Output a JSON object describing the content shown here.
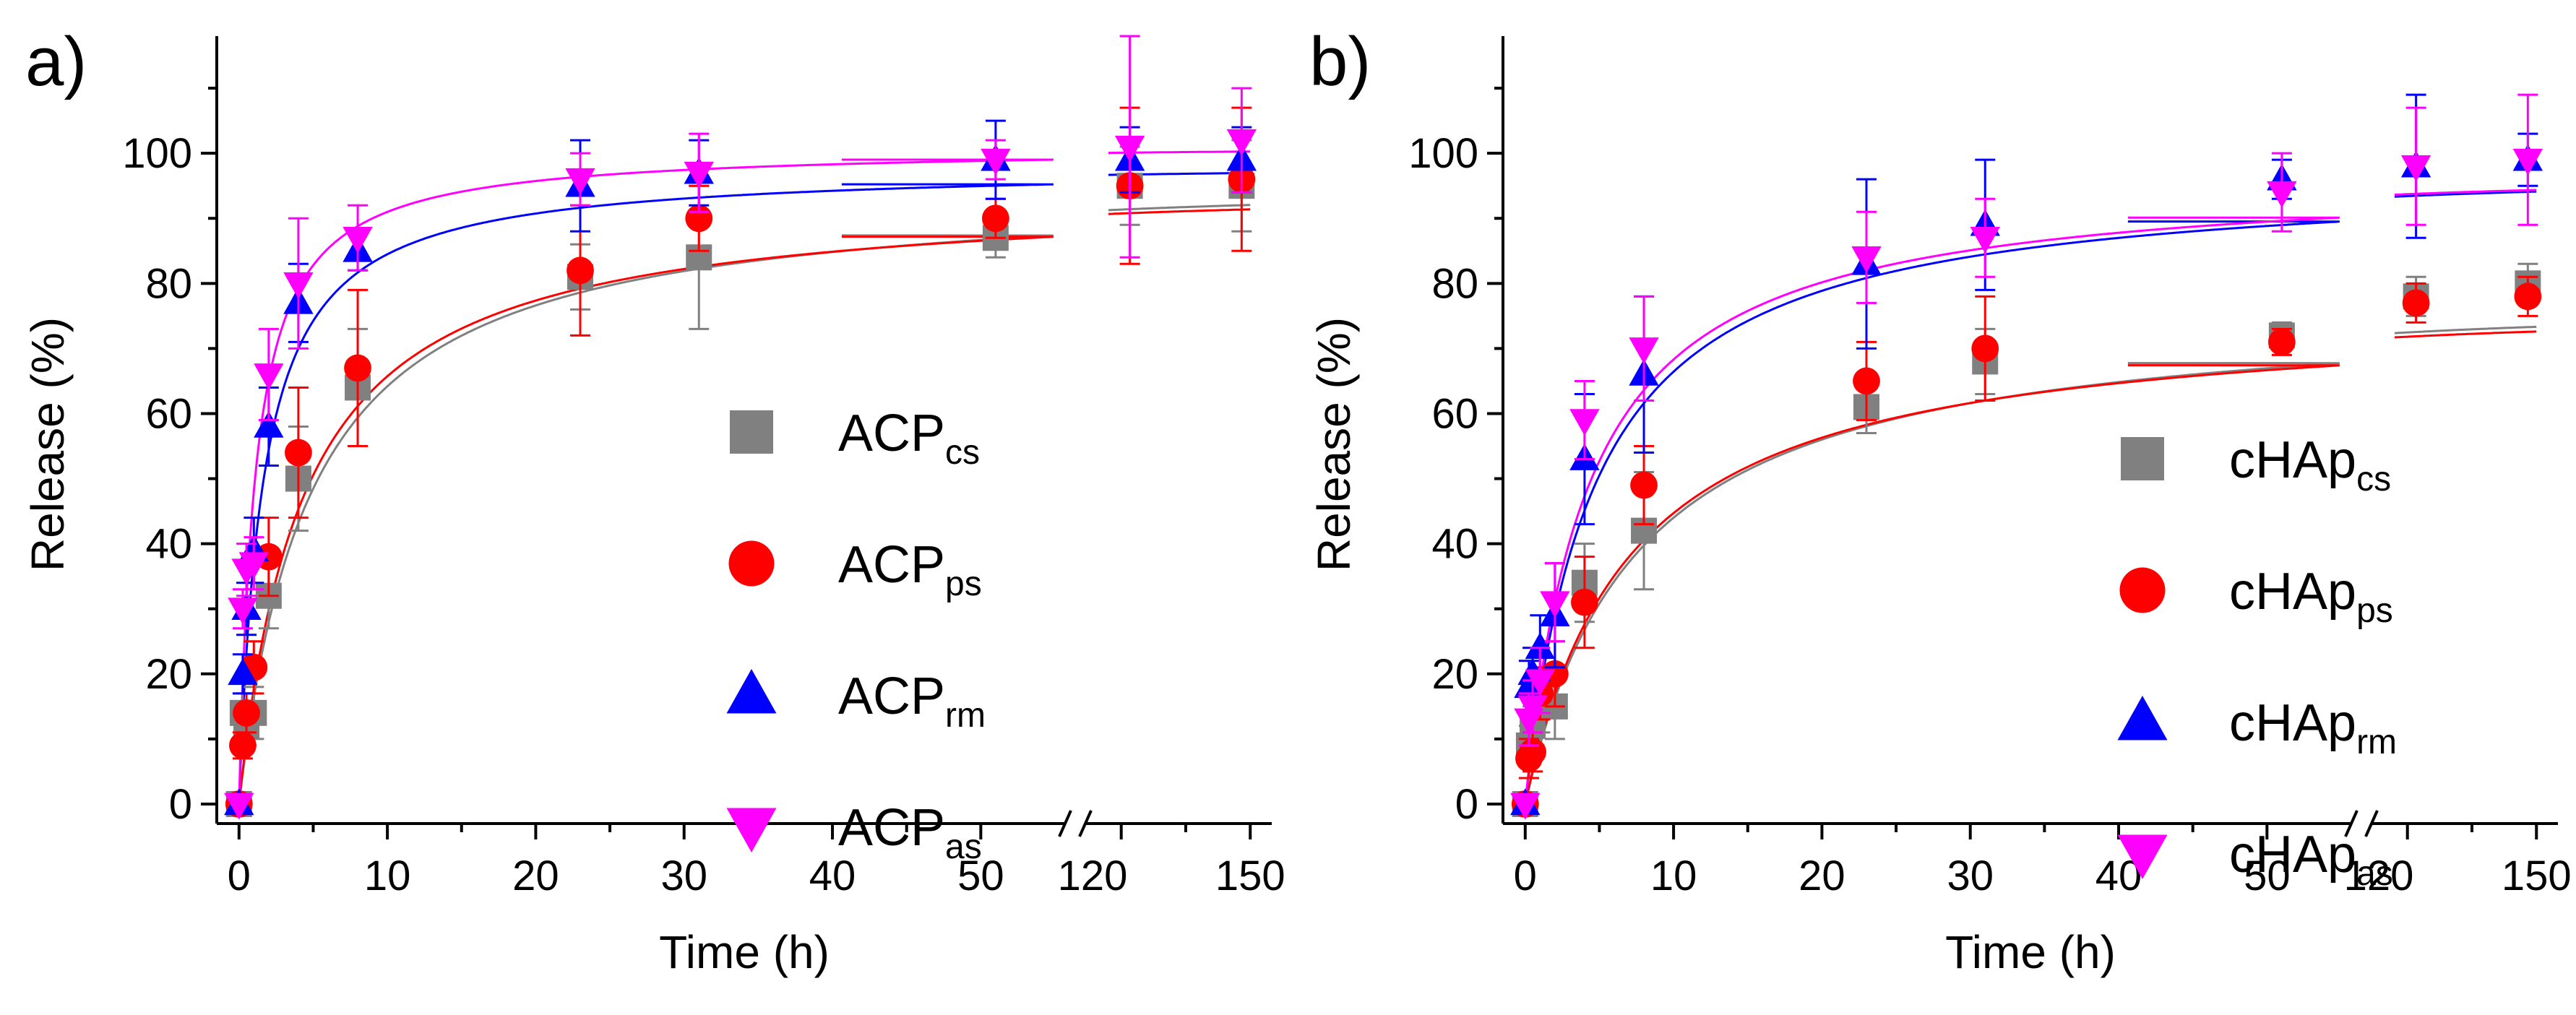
{
  "chart_data": [
    {
      "type": "scatter",
      "panel_label": "a)",
      "xlabel": "Time (h)",
      "ylabel": "Release (%)",
      "xlim_segment1": [
        -1.5,
        55
      ],
      "xlim_segment2": [
        114,
        155
      ],
      "ylim": [
        -3,
        118
      ],
      "x_ticks": [
        0,
        10,
        20,
        30,
        40,
        50,
        120,
        150
      ],
      "x_tick_labels": [
        "0",
        "10",
        "20",
        "30",
        "40",
        "50",
        "120",
        "150"
      ],
      "y_ticks": [
        0,
        20,
        40,
        60,
        80,
        100
      ],
      "y_tick_labels": [
        "0",
        "20",
        "40",
        "60",
        "80",
        "100"
      ],
      "axis_break": true,
      "legend_position": "center-right",
      "series": [
        {
          "base": "ACP",
          "sub": "cs",
          "color": "#808080",
          "marker": "square",
          "x": [
            0,
            0.25,
            0.5,
            1,
            2,
            4,
            8,
            23,
            31,
            51,
            122,
            148
          ],
          "y": [
            0,
            14,
            12,
            14,
            32,
            50,
            64,
            81,
            84,
            87,
            95,
            95
          ],
          "err": [
            0,
            3,
            3,
            4,
            5,
            8,
            9,
            5,
            11,
            3,
            6,
            7
          ],
          "fit_plateau": 95,
          "fit_halftime": 4.8
        },
        {
          "base": "ACP",
          "sub": "ps",
          "color": "#ff0000",
          "marker": "circle",
          "x": [
            0,
            0.25,
            0.5,
            1,
            2,
            4,
            8,
            23,
            31,
            51,
            122,
            148
          ],
          "y": [
            0,
            9,
            14,
            21,
            38,
            54,
            67,
            82,
            90,
            90,
            95,
            96
          ],
          "err": [
            0,
            2,
            3,
            4,
            6,
            10,
            12,
            10,
            5,
            3,
            12,
            11
          ],
          "fit_plateau": 94,
          "fit_halftime": 4.3
        },
        {
          "base": "ACP",
          "sub": "rm",
          "color": "#0000ff",
          "marker": "triangle-up",
          "x": [
            0,
            0.25,
            0.5,
            1,
            2,
            4,
            8,
            23,
            31,
            51,
            122,
            148
          ],
          "y": [
            0,
            20,
            30,
            39,
            58,
            77,
            85,
            95,
            97,
            99,
            99,
            99
          ],
          "err": [
            0,
            3,
            4,
            5,
            6,
            6,
            3,
            7,
            5,
            6,
            5,
            5
          ],
          "fit_plateau": 98,
          "fit_halftime": 1.6
        },
        {
          "base": "ACP",
          "sub": "as",
          "color": "#ff00ff",
          "marker": "triangle-down",
          "x": [
            0,
            0.25,
            0.5,
            1,
            2,
            4,
            8,
            23,
            31,
            51,
            122,
            148
          ],
          "y": [
            0,
            30,
            36,
            37,
            66,
            80,
            87,
            96,
            97,
            99,
            101,
            102
          ],
          "err": [
            0,
            3,
            4,
            4,
            7,
            10,
            5,
            4,
            6,
            3,
            17,
            8
          ],
          "fit_plateau": 101,
          "fit_halftime": 1.1
        }
      ]
    },
    {
      "type": "scatter",
      "panel_label": "b)",
      "xlabel": "Time (h)",
      "ylabel": "Release (%)",
      "xlim_segment1": [
        -1.5,
        55
      ],
      "xlim_segment2": [
        114,
        155
      ],
      "ylim": [
        -3,
        118
      ],
      "x_ticks": [
        0,
        10,
        20,
        30,
        40,
        50,
        120,
        150
      ],
      "x_tick_labels": [
        "0",
        "10",
        "20",
        "30",
        "40",
        "50",
        "120",
        "150"
      ],
      "y_ticks": [
        0,
        20,
        40,
        60,
        80,
        100
      ],
      "y_tick_labels": [
        "0",
        "20",
        "40",
        "60",
        "80",
        "100"
      ],
      "axis_break": true,
      "legend_position": "bottom-right",
      "series": [
        {
          "base": "cHAp",
          "sub": "cs",
          "color": "#808080",
          "marker": "square",
          "x": [
            0,
            0.25,
            0.5,
            1,
            2,
            4,
            8,
            23,
            31,
            51,
            122,
            148
          ],
          "y": [
            0,
            9,
            12,
            15,
            15,
            34,
            42,
            61,
            68,
            72,
            78,
            80
          ],
          "err": [
            0,
            3,
            3,
            4,
            5,
            6,
            9,
            4,
            5,
            2,
            3,
            3
          ],
          "fit_plateau": 77,
          "fit_halftime": 7.5
        },
        {
          "base": "cHAp",
          "sub": "ps",
          "color": "#ff0000",
          "marker": "circle",
          "x": [
            0,
            0.25,
            0.5,
            1,
            2,
            4,
            8,
            23,
            31,
            51,
            122,
            148
          ],
          "y": [
            0,
            7,
            8,
            17,
            20,
            31,
            49,
            65,
            70,
            71,
            77,
            78
          ],
          "err": [
            0,
            3,
            3,
            4,
            5,
            7,
            6,
            6,
            8,
            2,
            3,
            3
          ],
          "fit_plateau": 76,
          "fit_halftime": 7.0
        },
        {
          "base": "cHAp",
          "sub": "rm",
          "color": "#0000ff",
          "marker": "triangle-up",
          "x": [
            0,
            0.25,
            0.5,
            1,
            2,
            4,
            8,
            23,
            31,
            51,
            122,
            148
          ],
          "y": [
            0,
            18,
            20,
            24,
            29,
            53,
            66,
            83,
            89,
            96,
            98,
            99
          ],
          "err": [
            0,
            4,
            4,
            5,
            8,
            10,
            12,
            13,
            10,
            3,
            11,
            4
          ],
          "fit_plateau": 97,
          "fit_halftime": 4.6
        },
        {
          "base": "cHAp",
          "sub": "as",
          "color": "#ff00ff",
          "marker": "triangle-down",
          "x": [
            0,
            0.25,
            0.5,
            1,
            2,
            4,
            8,
            23,
            31,
            51,
            122,
            148
          ],
          "y": [
            0,
            13,
            15,
            19,
            31,
            59,
            70,
            84,
            87,
            94,
            98,
            99
          ],
          "err": [
            0,
            4,
            4,
            5,
            6,
            6,
            8,
            7,
            6,
            6,
            9,
            10
          ],
          "fit_plateau": 97,
          "fit_halftime": 4.2
        }
      ]
    }
  ]
}
